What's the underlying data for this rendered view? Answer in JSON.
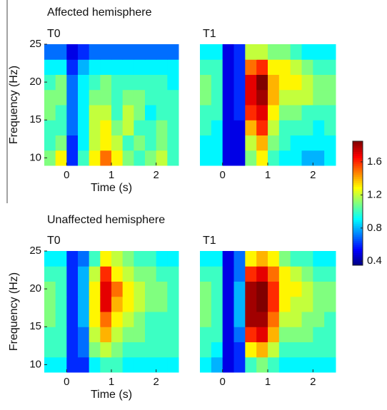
{
  "headings": [
    "Affected hemisphere",
    "Unaffected hemisphere"
  ],
  "colorbar": {
    "zlim": [
      0.35,
      1.85
    ],
    "ticks": [
      0.4,
      0.8,
      1.2,
      1.6
    ]
  },
  "chart_data": [
    {
      "type": "heatmap",
      "title": "T0",
      "xlabel": "Time (s)",
      "ylabel": "Frequency (Hz)",
      "x": [
        -0.375,
        -0.125,
        0.125,
        0.375,
        0.625,
        0.875,
        1.125,
        1.375,
        1.625,
        1.875,
        2.125,
        2.375
      ],
      "y": [
        10,
        12,
        14,
        16,
        18,
        20,
        22,
        24
      ],
      "xlim": [
        -0.5,
        2.5
      ],
      "ylim": [
        9,
        25
      ],
      "xticks": [
        0,
        1,
        2
      ],
      "yticks": [
        10,
        15,
        20,
        25
      ],
      "values": [
        [
          1.1,
          1.3,
          0.6,
          1.0,
          1.3,
          1.5,
          1.3,
          1.1,
          1.0,
          1.1,
          1.2,
          1.0
        ],
        [
          1.0,
          1.1,
          0.6,
          0.9,
          1.2,
          1.3,
          1.2,
          1.0,
          1.1,
          1.0,
          1.1,
          1.0
        ],
        [
          1.0,
          1.0,
          0.7,
          0.9,
          1.2,
          1.3,
          1.1,
          1.2,
          1.0,
          1.0,
          1.1,
          1.0
        ],
        [
          1.1,
          1.0,
          0.7,
          0.9,
          1.2,
          1.2,
          1.0,
          1.2,
          1.1,
          0.9,
          1.0,
          1.0
        ],
        [
          1.1,
          1.1,
          0.7,
          0.9,
          1.1,
          1.1,
          1.0,
          1.1,
          1.1,
          1.0,
          1.0,
          1.0
        ],
        [
          1.0,
          1.1,
          0.7,
          0.9,
          1.0,
          1.1,
          1.0,
          1.0,
          1.0,
          1.0,
          1.0,
          0.9
        ],
        [
          0.9,
          0.9,
          0.6,
          0.8,
          0.9,
          0.9,
          0.9,
          0.9,
          0.9,
          0.9,
          0.9,
          0.9
        ],
        [
          0.7,
          0.7,
          0.5,
          0.6,
          0.7,
          0.7,
          0.7,
          0.7,
          0.7,
          0.7,
          0.7,
          0.7
        ]
      ]
    },
    {
      "type": "heatmap",
      "title": "T1",
      "x": [
        -0.375,
        -0.125,
        0.125,
        0.375,
        0.625,
        0.875,
        1.125,
        1.375,
        1.625,
        1.875,
        2.125,
        2.375
      ],
      "y": [
        10,
        12,
        14,
        16,
        18,
        20,
        22,
        24
      ],
      "xlim": [
        -0.5,
        2.5
      ],
      "ylim": [
        9,
        25
      ],
      "xticks": [
        0,
        1,
        2
      ],
      "values": [
        [
          0.9,
          0.9,
          0.5,
          0.5,
          1.1,
          1.3,
          1.0,
          0.9,
          0.9,
          0.8,
          0.8,
          0.9
        ],
        [
          0.9,
          0.9,
          0.5,
          0.5,
          1.2,
          1.4,
          1.1,
          1.0,
          0.9,
          0.9,
          0.9,
          0.9
        ],
        [
          1.0,
          0.9,
          0.5,
          0.5,
          1.4,
          1.6,
          1.2,
          1.0,
          1.0,
          1.0,
          0.9,
          1.0
        ],
        [
          1.0,
          1.0,
          0.5,
          0.6,
          1.6,
          1.7,
          1.3,
          1.1,
          1.1,
          1.0,
          1.0,
          1.0
        ],
        [
          1.1,
          1.0,
          0.5,
          0.6,
          1.7,
          1.8,
          1.4,
          1.2,
          1.2,
          1.2,
          1.1,
          1.1
        ],
        [
          1.1,
          1.0,
          0.5,
          0.6,
          1.7,
          1.85,
          1.4,
          1.3,
          1.3,
          1.2,
          1.1,
          1.1
        ],
        [
          1.0,
          1.0,
          0.5,
          0.6,
          1.5,
          1.6,
          1.3,
          1.3,
          1.2,
          1.1,
          1.0,
          1.0
        ],
        [
          0.9,
          0.9,
          0.5,
          0.6,
          1.2,
          1.2,
          1.1,
          1.1,
          1.0,
          0.9,
          0.9,
          0.9
        ]
      ]
    },
    {
      "type": "heatmap",
      "title": "T0",
      "xlabel": "Time (s)",
      "ylabel": "Frequency (Hz)",
      "x": [
        -0.375,
        -0.125,
        0.125,
        0.375,
        0.625,
        0.875,
        1.125,
        1.375,
        1.625,
        1.875,
        2.125,
        2.375
      ],
      "y": [
        10,
        12,
        14,
        16,
        18,
        20,
        22,
        24
      ],
      "xlim": [
        -0.5,
        2.5
      ],
      "ylim": [
        9,
        25
      ],
      "xticks": [
        0,
        1,
        2
      ],
      "yticks": [
        10,
        15,
        20,
        25
      ],
      "values": [
        [
          0.9,
          0.9,
          0.6,
          0.6,
          0.9,
          1.0,
          1.0,
          0.9,
          0.9,
          0.9,
          0.9,
          0.9
        ],
        [
          1.0,
          1.0,
          0.6,
          0.7,
          1.1,
          1.2,
          1.1,
          1.0,
          1.0,
          1.0,
          1.0,
          1.0
        ],
        [
          1.0,
          1.0,
          0.6,
          0.7,
          1.2,
          1.4,
          1.2,
          1.1,
          1.1,
          1.0,
          1.0,
          1.0
        ],
        [
          1.1,
          1.0,
          0.6,
          0.8,
          1.3,
          1.5,
          1.3,
          1.2,
          1.1,
          1.0,
          1.0,
          1.0
        ],
        [
          1.1,
          1.0,
          0.6,
          0.8,
          1.3,
          1.7,
          1.4,
          1.3,
          1.2,
          1.1,
          1.1,
          1.0
        ],
        [
          1.1,
          1.0,
          0.6,
          0.8,
          1.3,
          1.7,
          1.5,
          1.3,
          1.2,
          1.1,
          1.1,
          1.0
        ],
        [
          1.0,
          1.0,
          0.6,
          0.8,
          1.2,
          1.6,
          1.3,
          1.2,
          1.1,
          1.1,
          1.0,
          1.0
        ],
        [
          0.9,
          0.9,
          0.6,
          0.7,
          1.0,
          1.3,
          1.2,
          1.1,
          1.0,
          1.0,
          0.9,
          0.9
        ]
      ]
    },
    {
      "type": "heatmap",
      "title": "T1",
      "x": [
        -0.375,
        -0.125,
        0.125,
        0.375,
        0.625,
        0.875,
        1.125,
        1.375,
        1.625,
        1.875,
        2.125,
        2.375
      ],
      "y": [
        10,
        12,
        14,
        16,
        18,
        20,
        22,
        24
      ],
      "xlim": [
        -0.5,
        2.5
      ],
      "ylim": [
        9,
        25
      ],
      "xticks": [
        0,
        1,
        2
      ],
      "values": [
        [
          0.9,
          0.8,
          0.5,
          0.6,
          1.0,
          1.1,
          1.0,
          0.9,
          0.9,
          0.9,
          0.9,
          0.9
        ],
        [
          1.0,
          0.9,
          0.5,
          0.6,
          1.3,
          1.4,
          1.2,
          1.0,
          1.0,
          1.0,
          1.0,
          1.0
        ],
        [
          1.0,
          1.0,
          0.5,
          0.7,
          1.6,
          1.7,
          1.4,
          1.1,
          1.1,
          1.1,
          1.0,
          1.0
        ],
        [
          1.1,
          1.0,
          0.5,
          0.8,
          1.8,
          1.8,
          1.5,
          1.2,
          1.2,
          1.1,
          1.1,
          1.0
        ],
        [
          1.1,
          1.0,
          0.5,
          0.8,
          1.8,
          1.85,
          1.6,
          1.3,
          1.2,
          1.2,
          1.1,
          1.1
        ],
        [
          1.1,
          1.0,
          0.5,
          0.8,
          1.8,
          1.85,
          1.6,
          1.3,
          1.3,
          1.2,
          1.1,
          1.1
        ],
        [
          1.0,
          1.0,
          0.5,
          0.7,
          1.6,
          1.7,
          1.5,
          1.3,
          1.2,
          1.1,
          1.0,
          1.0
        ],
        [
          0.9,
          0.9,
          0.5,
          0.7,
          1.3,
          1.4,
          1.3,
          1.1,
          1.0,
          1.0,
          0.9,
          0.9
        ]
      ]
    }
  ]
}
